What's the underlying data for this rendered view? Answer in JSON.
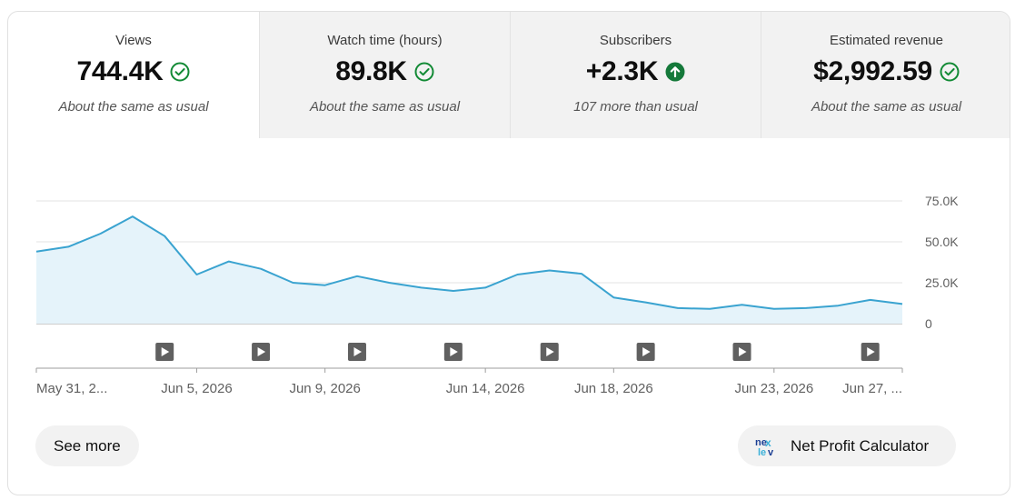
{
  "tabs": [
    {
      "label": "Views",
      "value": "744.4K",
      "note": "About the same as usual",
      "status": "check"
    },
    {
      "label": "Watch time (hours)",
      "value": "89.8K",
      "note": "About the same as usual",
      "status": "check"
    },
    {
      "label": "Subscribers",
      "value": "+2.3K",
      "note": "107 more than usual",
      "status": "up"
    },
    {
      "label": "Estimated revenue",
      "value": "$2,992.59",
      "note": "About the same as usual",
      "status": "check"
    }
  ],
  "colors": {
    "line": "#3aa3d0",
    "area": "#e5f3fa",
    "check": "#128a35",
    "up": "#15793a"
  },
  "chart_data": {
    "type": "area",
    "y_ticks": [
      "75.0K",
      "50.0K",
      "25.0K",
      "0"
    ],
    "ylim": [
      0,
      75000
    ],
    "x_labels": [
      "May 31, 2...",
      "Jun 5, 2026",
      "Jun 9, 2026",
      "Jun 14, 2026",
      "Jun 18, 2026",
      "Jun 23, 2026",
      "Jun 27, ..."
    ],
    "x_label_days": [
      0,
      5,
      9,
      14,
      18,
      23,
      27
    ],
    "values": [
      44000,
      47000,
      55000,
      65500,
      53500,
      30000,
      38000,
      33500,
      25000,
      23500,
      29000,
      25000,
      22000,
      20000,
      22000,
      30000,
      32500,
      30500,
      16000,
      13000,
      9500,
      9000,
      11500,
      9000,
      9500,
      11000,
      14500,
      12000
    ],
    "video_marker_days": [
      4,
      7,
      10,
      13,
      16,
      19,
      22,
      26
    ]
  },
  "buttons": {
    "see_more": "See more",
    "net_profit": "Net Profit Calculator",
    "net_profit_icon": "nexlev-logo-icon"
  }
}
